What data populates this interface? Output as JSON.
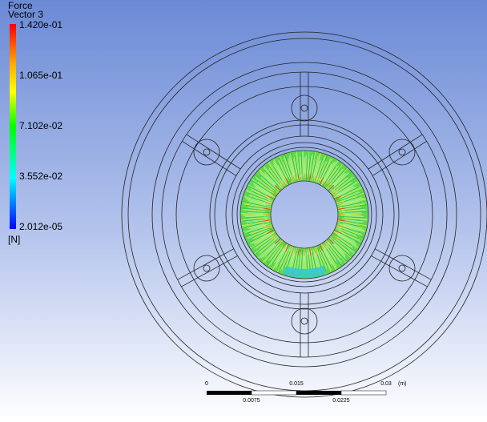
{
  "legend": {
    "title": "Force",
    "variable": "Vector 3",
    "labels": [
      "1.420e-01",
      "1.065e-01",
      "7.102e-02",
      "3.552e-02",
      "2.012e-05"
    ],
    "unit": "[N]"
  },
  "scale_bar": {
    "top_labels": [
      "0",
      "0.015",
      "0.03"
    ],
    "unit": "(m)",
    "bottom_labels": [
      "0.0075",
      "0.0225"
    ]
  }
}
